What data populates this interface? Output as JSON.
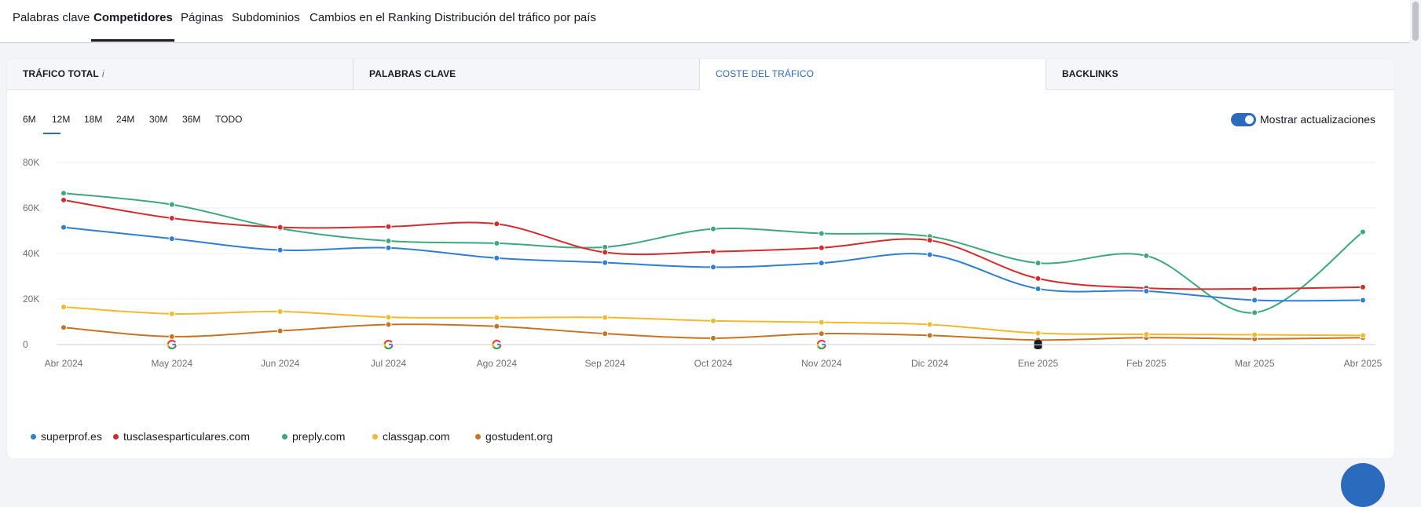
{
  "top_tabs": {
    "items": [
      "Palabras clave",
      "Competidores",
      "Páginas",
      "Subdominios",
      "Cambios en el Ranking",
      "Distribución del tráfico por país"
    ],
    "active": "Competidores"
  },
  "metric_tabs": {
    "items": [
      "TRÁFICO TOTAL",
      "PALABRAS CLAVE",
      "COSTE DEL TRÁFICO",
      "BACKLINKS"
    ],
    "info_icon": "i",
    "active": "COSTE DEL TRÁFICO"
  },
  "periods": {
    "items": [
      "6M",
      "12M",
      "18M",
      "24M",
      "30M",
      "36M",
      "TODO"
    ],
    "active": "12M"
  },
  "toggle": {
    "label": "Mostrar actualizaciones",
    "checked": true
  },
  "colors": {
    "accent": "#2a6bbd",
    "superprof": "#2e7fd1",
    "tusclases": "#d42b2b",
    "preply": "#3ba97a",
    "classgap": "#f4b92a",
    "gostudent": "#c77422"
  },
  "chart_data": {
    "type": "line",
    "x": [
      "Abr 2024",
      "May 2024",
      "Jun 2024",
      "Jul 2024",
      "Ago 2024",
      "Sep 2024",
      "Oct 2024",
      "Nov 2024",
      "Dic 2024",
      "Ene 2025",
      "Feb 2025",
      "Mar 2025",
      "Abr 2025"
    ],
    "yticks": [
      "0",
      "20K",
      "40K",
      "60K",
      "80K"
    ],
    "ylim": [
      0,
      80000
    ],
    "grid": true,
    "legend_position": "bottom-left",
    "series": [
      {
        "name": "superprof.es",
        "color": "#2e7fd1",
        "values": [
          51500,
          46500,
          41500,
          42500,
          38000,
          36000,
          34000,
          35800,
          39500,
          24500,
          23500,
          19500,
          19500
        ]
      },
      {
        "name": "tusclasesparticulares.com",
        "color": "#d42b2b",
        "values": [
          63500,
          55500,
          51500,
          51800,
          53000,
          40500,
          40800,
          42500,
          45800,
          29000,
          24800,
          24500,
          25200
        ]
      },
      {
        "name": "preply.com",
        "color": "#3ba97a",
        "values": [
          66500,
          61500,
          51000,
          45500,
          44500,
          42800,
          50800,
          48800,
          47500,
          35800,
          39000,
          14000,
          49500
        ]
      },
      {
        "name": "classgap.com",
        "color": "#f4b92a",
        "values": [
          16500,
          13500,
          14500,
          12000,
          11800,
          11900,
          10400,
          9800,
          8800,
          5000,
          4500,
          4300,
          4000
        ]
      },
      {
        "name": "gostudent.org",
        "color": "#c77422",
        "values": [
          7500,
          3500,
          6000,
          8800,
          8000,
          4800,
          2800,
          4800,
          4000,
          2000,
          3000,
          2500,
          3000
        ]
      }
    ],
    "update_markers": [
      {
        "x": "May 2024",
        "icon": "google-update-icon"
      },
      {
        "x": "Jul 2024",
        "icon": "google-update-icon"
      },
      {
        "x": "Ago 2024",
        "icon": "google-update-icon"
      },
      {
        "x": "Nov 2024",
        "icon": "google-update-icon"
      },
      {
        "x": "Ene 2025",
        "icon": "database-update-icon"
      }
    ]
  }
}
